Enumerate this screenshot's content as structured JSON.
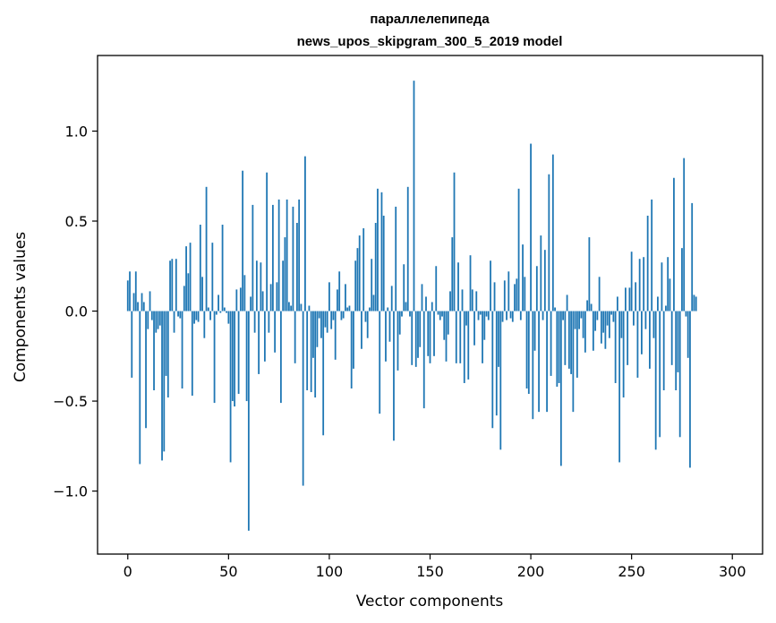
{
  "chart_data": {
    "type": "bar",
    "title": "параллелепипеда",
    "subtitle": "news_upos_skipgram_300_5_2019 model",
    "xlabel": "Vector components",
    "ylabel": "Components values",
    "xlim": [
      -15,
      315
    ],
    "ylim": [
      -1.35,
      1.42
    ],
    "xticks": [
      0,
      50,
      100,
      150,
      200,
      250,
      300
    ],
    "xtick_labels": [
      "0",
      "50",
      "100",
      "150",
      "200",
      "250",
      "300"
    ],
    "yticks": [
      -1.0,
      -0.5,
      0.0,
      0.5,
      1.0
    ],
    "ytick_labels": [
      "−1.0",
      "−0.5",
      "0.0",
      "0.5",
      "1.0"
    ],
    "bar_color": "#1f77b4",
    "grid": false,
    "values": [
      0.17,
      0.22,
      -0.37,
      0.1,
      0.22,
      0.05,
      -0.85,
      0.1,
      0.05,
      -0.65,
      -0.1,
      0.11,
      -0.05,
      -0.44,
      -0.12,
      -0.1,
      -0.08,
      -0.83,
      -0.78,
      -0.36,
      -0.48,
      0.28,
      0.29,
      -0.12,
      0.29,
      -0.03,
      -0.04,
      -0.43,
      0.14,
      0.36,
      0.21,
      0.38,
      -0.47,
      -0.07,
      -0.05,
      -0.06,
      0.48,
      0.19,
      -0.15,
      0.69,
      0.02,
      -0.05,
      0.38,
      -0.51,
      -0.02,
      0.09,
      -0.01,
      0.48,
      0.02,
      -0.01,
      -0.07,
      -0.84,
      -0.5,
      -0.53,
      0.12,
      -0.46,
      0.13,
      0.78,
      0.2,
      -0.5,
      -1.22,
      0.08,
      0.59,
      -0.12,
      0.28,
      -0.35,
      0.27,
      0.11,
      -0.28,
      0.77,
      -0.12,
      0.15,
      0.59,
      -0.23,
      0.16,
      0.62,
      -0.51,
      0.28,
      0.41,
      0.62,
      0.05,
      0.03,
      0.58,
      -0.29,
      0.49,
      0.62,
      0.04,
      -0.97,
      0.86,
      -0.44,
      0.03,
      -0.45,
      -0.26,
      -0.48,
      -0.2,
      -0.04,
      -0.15,
      -0.69,
      -0.09,
      -0.12,
      0.16,
      -0.1,
      -0.05,
      -0.27,
      0.12,
      0.22,
      -0.05,
      -0.04,
      0.15,
      0.02,
      0.03,
      -0.43,
      -0.32,
      0.28,
      0.35,
      0.42,
      -0.21,
      0.46,
      -0.06,
      -0.15,
      0.02,
      0.29,
      0.09,
      0.49,
      0.68,
      -0.57,
      0.66,
      0.53,
      -0.28,
      0.02,
      -0.17,
      0.14,
      -0.72,
      0.58,
      -0.33,
      -0.13,
      -0.03,
      0.26,
      0.05,
      0.69,
      -0.03,
      -0.3,
      1.28,
      -0.31,
      -0.26,
      -0.2,
      0.15,
      -0.54,
      0.08,
      -0.25,
      -0.29,
      0.05,
      -0.25,
      0.25,
      -0.02,
      -0.05,
      -0.03,
      -0.16,
      -0.28,
      -0.13,
      0.11,
      0.41,
      0.77,
      -0.29,
      0.27,
      -0.29,
      0.12,
      -0.4,
      -0.08,
      -0.38,
      0.31,
      0.12,
      -0.19,
      0.11,
      -0.05,
      -0.02,
      -0.29,
      -0.16,
      -0.03,
      -0.05,
      0.28,
      -0.65,
      0.16,
      -0.58,
      -0.31,
      -0.77,
      -0.06,
      0.17,
      -0.05,
      0.22,
      -0.04,
      -0.06,
      0.15,
      0.18,
      0.68,
      -0.05,
      0.37,
      0.19,
      -0.43,
      -0.46,
      0.93,
      -0.6,
      -0.22,
      0.25,
      -0.56,
      0.42,
      -0.05,
      0.34,
      -0.56,
      0.76,
      -0.36,
      0.87,
      0.02,
      -0.42,
      -0.4,
      -0.86,
      -0.05,
      -0.3,
      0.09,
      -0.32,
      -0.35,
      -0.56,
      -0.1,
      -0.37,
      -0.1,
      -0.04,
      -0.15,
      -0.23,
      0.06,
      0.41,
      0.04,
      -0.22,
      -0.11,
      -0.05,
      0.19,
      -0.18,
      -0.12,
      -0.21,
      -0.08,
      -0.15,
      -0.02,
      -0.06,
      -0.4,
      0.08,
      -0.84,
      -0.15,
      -0.48,
      0.13,
      -0.3,
      0.13,
      0.33,
      -0.08,
      0.16,
      -0.37,
      0.29,
      -0.24,
      0.3,
      -0.1,
      0.53,
      -0.32,
      0.62,
      -0.15,
      -0.77,
      0.08,
      -0.7,
      0.27,
      -0.44,
      0.03,
      0.3,
      0.18,
      -0.3,
      0.74,
      -0.44,
      -0.34,
      -0.7,
      0.35,
      0.85,
      -0.03,
      -0.26,
      -0.87,
      0.6,
      0.09,
      0.08
    ]
  }
}
